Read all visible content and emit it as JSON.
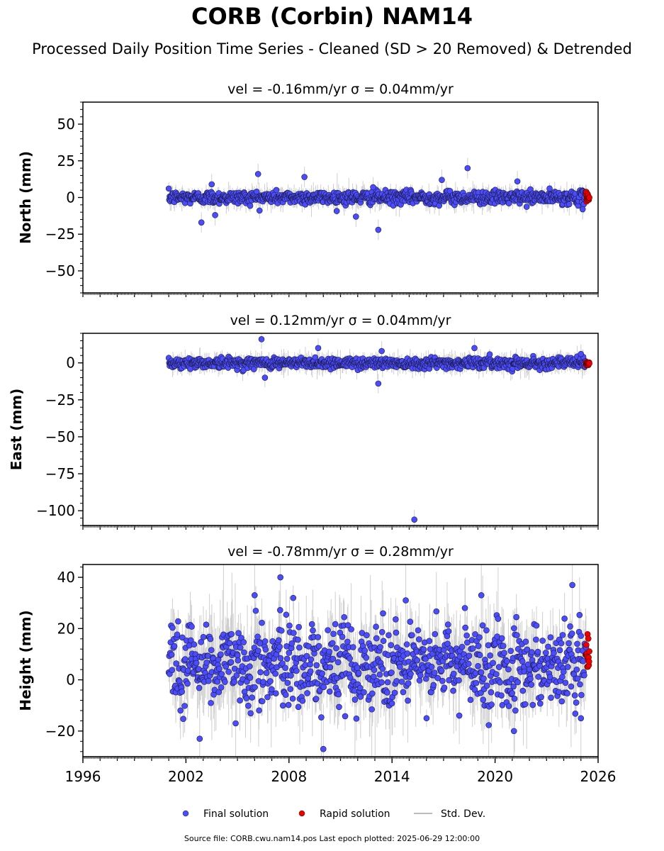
{
  "title": "CORB (Corbin) NAM14",
  "subtitle": "Processed Daily Position Time Series - Cleaned (SD > 20 Removed) & Detrended",
  "footer": "Source file: CORB.cwu.nam14.pos  Last epoch plotted: 2025-06-29 12:00:00",
  "colors": {
    "final": "#4c4cff",
    "rapid": "#ee0000",
    "stddev": "#bbbbbb",
    "axes": "#000000"
  },
  "legend": {
    "placement": "bottom-center",
    "items": [
      {
        "label": "Final solution",
        "marker": "circle",
        "color": "#4c4cff"
      },
      {
        "label": "Rapid solution",
        "marker": "circle",
        "color": "#ee0000"
      },
      {
        "label": "Std. Dev.",
        "marker": "line",
        "color": "#bbbbbb"
      }
    ]
  },
  "chart_data": [
    {
      "type": "scatter",
      "title": "vel = -0.16mm/yr   σ = 0.04mm/yr",
      "ylabel": "North (mm)",
      "xlim": [
        1996,
        2026
      ],
      "ylim": [
        -65,
        65
      ],
      "yticks": [
        {
          "value": -50,
          "label": "−50"
        },
        {
          "value": -25,
          "label": "−25"
        },
        {
          "value": 0,
          "label": "0"
        },
        {
          "value": 25,
          "label": "25"
        },
        {
          "value": 50,
          "label": "50"
        }
      ],
      "data_span": [
        2001.0,
        2025.49
      ],
      "rapid_span": [
        2025.3,
        2025.49
      ],
      "noise_sd": 2.2,
      "err_sd": 3.2,
      "outliers": [
        {
          "x": 2002.9,
          "y": -17
        },
        {
          "x": 2003.7,
          "y": -12
        },
        {
          "x": 2003.5,
          "y": 9
        },
        {
          "x": 2006.2,
          "y": 16
        },
        {
          "x": 2008.9,
          "y": 14
        },
        {
          "x": 2011.9,
          "y": -13
        },
        {
          "x": 2013.2,
          "y": -22
        },
        {
          "x": 2016.9,
          "y": 12
        },
        {
          "x": 2018.4,
          "y": 20
        },
        {
          "x": 2021.3,
          "y": 11
        },
        {
          "x": 2012.9,
          "y": 7
        },
        {
          "x": 2025.1,
          "y": -8
        }
      ]
    },
    {
      "type": "scatter",
      "title": "vel = 0.12mm/yr   σ = 0.04mm/yr",
      "ylabel": "East (mm)",
      "xlim": [
        1996,
        2026
      ],
      "ylim": [
        -110,
        20
      ],
      "yticks": [
        {
          "value": -100,
          "label": "−100"
        },
        {
          "value": -75,
          "label": "−75"
        },
        {
          "value": -50,
          "label": "−50"
        },
        {
          "value": -25,
          "label": "−25"
        },
        {
          "value": 0,
          "label": "0"
        }
      ],
      "data_span": [
        2001.0,
        2025.49
      ],
      "rapid_span": [
        2025.3,
        2025.49
      ],
      "noise_sd": 1.8,
      "err_sd": 3.0,
      "outliers": [
        {
          "x": 2006.4,
          "y": 16
        },
        {
          "x": 2006.6,
          "y": -10
        },
        {
          "x": 2009.7,
          "y": 10
        },
        {
          "x": 2013.2,
          "y": -14
        },
        {
          "x": 2015.3,
          "y": -106
        },
        {
          "x": 2018.8,
          "y": 10
        },
        {
          "x": 2013.4,
          "y": 8
        },
        {
          "x": 2025.0,
          "y": 6
        }
      ]
    },
    {
      "type": "scatter",
      "title": "vel = -0.78mm/yr   σ = 0.28mm/yr",
      "ylabel": "Height (mm)",
      "xlim": [
        1996,
        2026
      ],
      "ylim": [
        -30,
        45
      ],
      "xticks": [
        1996,
        2002,
        2008,
        2014,
        2020,
        2026
      ],
      "yticks": [
        {
          "value": -20,
          "label": "−20"
        },
        {
          "value": 0,
          "label": "0"
        },
        {
          "value": 20,
          "label": "20"
        },
        {
          "value": 40,
          "label": "40"
        }
      ],
      "data_span": [
        2001.0,
        2025.49
      ],
      "rapid_span": [
        2025.3,
        2025.49
      ],
      "noise_sd": 8.0,
      "err_sd": 8.0,
      "center": 6,
      "outliers": [
        {
          "x": 2002.8,
          "y": -23
        },
        {
          "x": 2007.5,
          "y": 40
        },
        {
          "x": 2010.0,
          "y": -27
        },
        {
          "x": 2014.8,
          "y": 31
        },
        {
          "x": 2019.2,
          "y": 33
        },
        {
          "x": 2024.5,
          "y": 37
        },
        {
          "x": 2025.0,
          "y": -15
        },
        {
          "x": 2021.1,
          "y": -20
        },
        {
          "x": 2006.0,
          "y": 33
        }
      ]
    }
  ]
}
